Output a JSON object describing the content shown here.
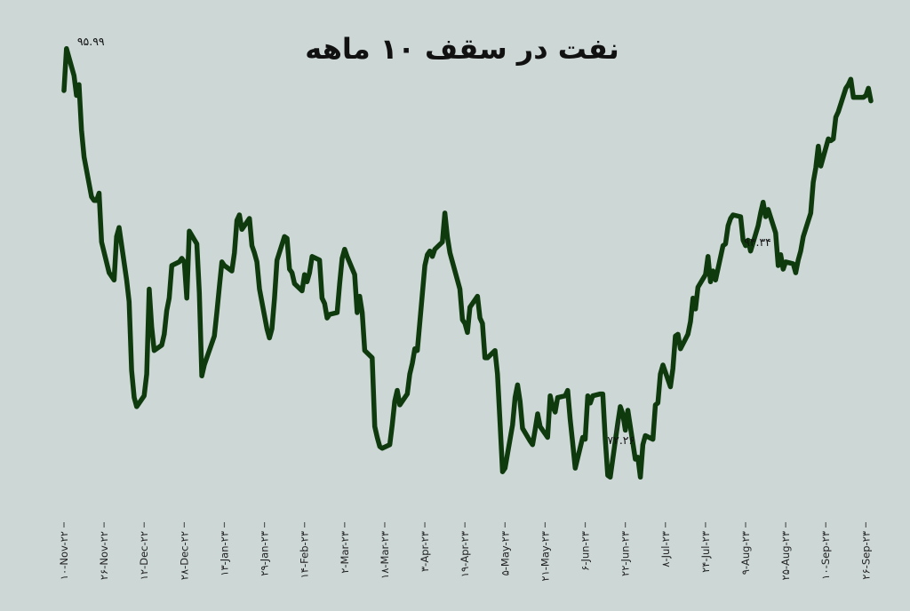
{
  "colors": {
    "background": "#cdd7d6",
    "line": "#0e3a0d",
    "axis": "#555555",
    "text": "#111111"
  },
  "chart_data": {
    "type": "line",
    "title": "نفت در سقف ۱۰ ماهه",
    "xlabel": "",
    "ylabel": "",
    "ylim": [
      70.5,
      97.5
    ],
    "grid": false,
    "legend": "none",
    "x_ticks": [
      "۱۰-Nov-۲۲",
      "۲۶-Nov-۲۲",
      "۱۲-Dec-۲۲",
      "۲۸-Dec-۲۲",
      "۱۳-Jan-۲۳",
      "۲۹-Jan-۲۳",
      "۱۴-Feb-۲۳",
      "۲-Mar-۲۳",
      "۱۸-Mar-۲۳",
      "۳-Apr-۲۳",
      "۱۹-Apr-۲۳",
      "۵-May-۲۳",
      "۲۱-May-۲۳",
      "۶-Jun-۲۳",
      "۲۲-Jun-۲۳",
      "۸-Jul-۲۳",
      "۲۴-Jul-۲۳",
      "۹-Aug-۲۳",
      "۲۵-Aug-۲۳",
      "۱۰-Sep-۲۳",
      "۲۶-Sep-۲۳"
    ],
    "annotations": [
      {
        "label": "۹۵.۹۹",
        "point_index": 1
      },
      {
        "label": "۷۲.۲۶",
        "point_index": 159
      },
      {
        "label": "۹۴.۳۴",
        "point_index": 204
      }
    ],
    "series": [
      {
        "x": [
          "2022-11-10",
          "2022-11-11",
          "2022-11-14",
          "2022-11-15",
          "2022-11-16",
          "2022-11-17",
          "2022-11-18",
          "2022-11-21",
          "2022-11-22",
          "2022-11-23",
          "2022-11-24",
          "2022-11-25",
          "2022-11-28",
          "2022-11-29",
          "2022-11-30",
          "2022-12-01",
          "2022-12-02",
          "2022-12-05",
          "2022-12-06",
          "2022-12-07",
          "2022-12-08",
          "2022-12-09",
          "2022-12-12",
          "2022-12-13",
          "2022-12-14",
          "2022-12-15",
          "2022-12-16",
          "2022-12-19",
          "2022-12-20",
          "2022-12-21",
          "2022-12-22",
          "2022-12-23",
          "2022-12-26",
          "2022-12-27",
          "2022-12-28",
          "2022-12-29",
          "2022-12-30",
          "2023-01-02",
          "2023-01-03",
          "2023-01-04",
          "2023-01-05",
          "2023-01-06",
          "2023-01-09",
          "2023-01-10",
          "2023-01-11",
          "2023-01-12",
          "2023-01-13",
          "2023-01-16",
          "2023-01-17",
          "2023-01-18",
          "2023-01-19",
          "2023-01-20",
          "2023-01-23",
          "2023-01-24",
          "2023-01-25",
          "2023-01-26",
          "2023-01-27",
          "2023-01-30",
          "2023-01-31",
          "2023-02-01",
          "2023-02-02",
          "2023-02-03",
          "2023-02-06",
          "2023-02-07",
          "2023-02-08",
          "2023-02-09",
          "2023-02-10",
          "2023-02-13",
          "2023-02-14",
          "2023-02-15",
          "2023-02-16",
          "2023-02-17",
          "2023-02-20",
          "2023-02-21",
          "2023-02-22",
          "2023-02-23",
          "2023-02-24",
          "2023-02-27",
          "2023-02-28",
          "2023-03-01",
          "2023-03-02",
          "2023-03-03",
          "2023-03-06",
          "2023-03-07",
          "2023-03-08",
          "2023-03-09",
          "2023-03-10",
          "2023-03-13",
          "2023-03-14",
          "2023-03-15",
          "2023-03-16",
          "2023-03-17",
          "2023-03-20",
          "2023-03-21",
          "2023-03-22",
          "2023-03-23",
          "2023-03-24",
          "2023-03-27",
          "2023-03-28",
          "2023-03-29",
          "2023-03-30",
          "2023-03-31",
          "2023-04-03",
          "2023-04-04",
          "2023-04-05",
          "2023-04-06",
          "2023-04-07",
          "2023-04-10",
          "2023-04-11",
          "2023-04-12",
          "2023-04-13",
          "2023-04-14",
          "2023-04-17",
          "2023-04-18",
          "2023-04-19",
          "2023-04-20",
          "2023-04-21",
          "2023-04-24",
          "2023-04-25",
          "2023-04-26",
          "2023-04-27",
          "2023-04-28",
          "2023-05-01",
          "2023-05-02",
          "2023-05-03",
          "2023-05-04",
          "2023-05-05",
          "2023-05-08",
          "2023-05-09",
          "2023-05-10",
          "2023-05-11",
          "2023-05-12",
          "2023-05-15",
          "2023-05-16",
          "2023-05-17",
          "2023-05-18",
          "2023-05-19",
          "2023-05-22",
          "2023-05-23",
          "2023-05-24",
          "2023-05-25",
          "2023-05-26",
          "2023-05-29",
          "2023-05-30",
          "2023-05-31",
          "2023-06-01",
          "2023-06-02",
          "2023-06-05",
          "2023-06-06",
          "2023-06-07",
          "2023-06-08",
          "2023-06-09",
          "2023-06-12",
          "2023-06-13",
          "2023-06-14",
          "2023-06-15",
          "2023-06-16",
          "2023-06-19",
          "2023-06-20",
          "2023-06-21",
          "2023-06-22",
          "2023-06-23",
          "2023-06-26",
          "2023-06-27",
          "2023-06-28",
          "2023-06-29",
          "2023-06-30",
          "2023-07-03",
          "2023-07-04",
          "2023-07-05",
          "2023-07-06",
          "2023-07-07",
          "2023-07-10",
          "2023-07-11",
          "2023-07-12",
          "2023-07-13",
          "2023-07-14",
          "2023-07-17",
          "2023-07-18",
          "2023-07-19",
          "2023-07-20",
          "2023-07-21",
          "2023-07-24",
          "2023-07-25",
          "2023-07-26",
          "2023-07-27",
          "2023-07-28",
          "2023-07-31",
          "2023-08-01",
          "2023-08-02",
          "2023-08-03",
          "2023-08-04",
          "2023-08-07",
          "2023-08-08",
          "2023-08-09",
          "2023-08-10",
          "2023-08-11",
          "2023-08-14",
          "2023-08-15",
          "2023-08-16",
          "2023-08-17",
          "2023-08-18",
          "2023-08-21",
          "2023-08-22",
          "2023-08-23",
          "2023-08-24",
          "2023-08-25",
          "2023-08-28",
          "2023-08-29",
          "2023-08-30",
          "2023-08-31",
          "2023-09-01",
          "2023-09-04",
          "2023-09-05",
          "2023-09-06",
          "2023-09-07",
          "2023-09-08",
          "2023-09-11",
          "2023-09-12",
          "2023-09-13",
          "2023-09-14",
          "2023-09-15",
          "2023-09-18",
          "2023-09-19",
          "2023-09-20",
          "2023-09-21",
          "2023-09-22",
          "2023-09-25",
          "2023-09-26",
          "2023-09-27",
          "2023-09-28"
        ],
        "values": [
          93.67,
          95.99,
          94.5,
          93.4,
          94.0,
          91.5,
          90.0,
          87.8,
          87.6,
          87.6,
          88.0,
          85.3,
          83.6,
          83.4,
          83.2,
          85.6,
          86.1,
          83.2,
          82.0,
          78.2,
          76.7,
          76.2,
          76.8,
          78.0,
          82.7,
          80.6,
          79.3,
          79.6,
          80.2,
          81.5,
          82.2,
          84.0,
          84.2,
          84.4,
          84.2,
          82.2,
          85.9,
          85.2,
          82.5,
          77.9,
          78.5,
          78.9,
          80.1,
          81.4,
          82.8,
          84.2,
          84.0,
          83.7,
          84.7,
          86.5,
          86.8,
          86.0,
          86.6,
          85.1,
          84.7,
          84.2,
          82.7,
          80.5,
          80.0,
          80.5,
          82.2,
          84.3,
          85.6,
          85.5,
          83.8,
          83.6,
          83.0,
          82.6,
          83.5,
          83.1,
          83.6,
          84.5,
          84.3,
          82.2,
          81.9,
          81.1,
          81.3,
          81.4,
          83.0,
          84.4,
          84.9,
          84.5,
          83.5,
          81.4,
          82.3,
          81.4,
          79.3,
          78.9,
          75.1,
          74.5,
          74.0,
          73.9,
          74.1,
          75.2,
          76.5,
          77.1,
          76.3,
          76.9,
          78.0,
          78.6,
          79.4,
          79.3,
          84.0,
          84.6,
          84.8,
          84.5,
          84.9,
          85.3,
          86.9,
          85.6,
          84.7,
          84.2,
          82.7,
          81.0,
          80.8,
          80.3,
          81.7,
          82.3,
          81.1,
          80.8,
          78.9,
          78.9,
          79.3,
          78.0,
          75.3,
          72.6,
          72.8,
          75.2,
          76.7,
          77.4,
          76.5,
          75.0,
          74.3,
          74.1,
          74.9,
          75.8,
          75.1,
          74.5,
          76.8,
          76.2,
          75.9,
          76.7,
          76.8,
          77.1,
          75.5,
          74.2,
          72.8,
          74.5,
          74.4,
          76.8,
          76.4,
          76.8,
          76.9,
          76.9,
          74.4,
          72.4,
          72.3,
          75.3,
          76.2,
          75.8,
          74.9,
          76.0,
          73.3,
          73.4,
          72.3,
          74.1,
          74.6,
          74.4,
          76.3,
          76.4,
          78.0,
          78.5,
          77.3,
          78.3,
          80.1,
          80.2,
          79.4,
          80.2,
          80.9,
          82.2,
          81.6,
          82.8,
          83.5,
          84.5,
          83.1,
          83.7,
          83.2,
          85.1,
          85.2,
          86.2,
          86.6,
          86.8,
          86.7,
          85.4,
          85.1,
          85.4,
          84.8,
          86.2,
          86.9,
          87.5,
          86.7,
          87.1,
          85.8,
          84.0,
          84.6,
          83.8,
          84.2,
          84.1,
          83.6,
          84.3,
          84.8,
          85.6,
          86.9,
          88.6,
          89.4,
          90.6,
          89.5,
          91.0,
          90.9,
          91.0,
          92.2,
          92.5,
          93.8,
          94.0,
          94.3,
          93.3,
          93.3,
          93.3,
          93.4,
          93.8,
          93.1
        ]
      }
    ]
  }
}
